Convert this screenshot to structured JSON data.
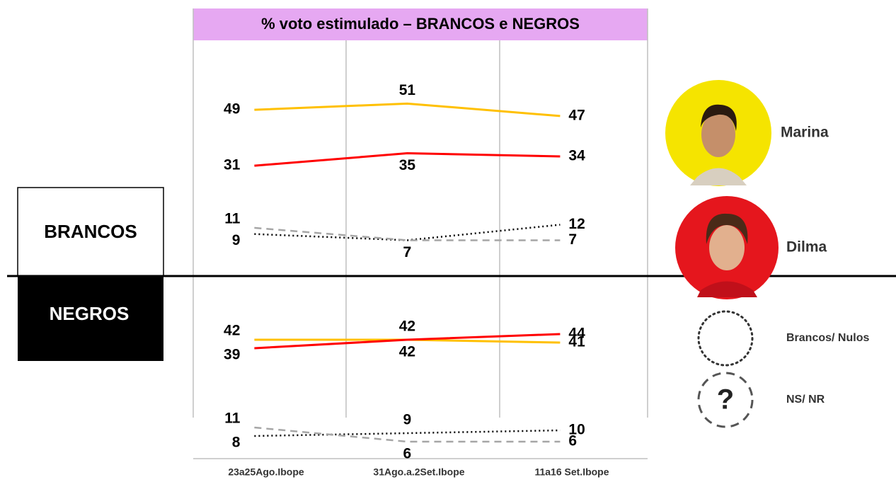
{
  "chart_data": {
    "type": "line",
    "title": "% voto estimulado – BRANCOS e NEGROS",
    "categories": [
      "23a25Ago.Ibope",
      "31Ago.a.2Set.Ibope",
      "11a16 Set.Ibope"
    ],
    "panels": [
      "BRANCOS",
      "NEGROS"
    ],
    "ylim": [
      [
        3,
        57
      ],
      [
        2,
        62
      ]
    ],
    "series": [
      {
        "name": "Marina",
        "color": "#ffc000",
        "dash": "solid",
        "values": [
          [
            49,
            51,
            47
          ],
          [
            42,
            42,
            41
          ]
        ]
      },
      {
        "name": "Dilma",
        "color": "#ff0000",
        "dash": "solid",
        "values": [
          [
            31,
            35,
            34
          ],
          [
            39,
            42,
            44
          ]
        ]
      },
      {
        "name": "Brancos/ Nulos",
        "color": "#000000",
        "dash": "dotted",
        "values": [
          [
            9,
            7,
            12
          ],
          [
            8,
            9,
            10
          ]
        ]
      },
      {
        "name": "NS/ NR",
        "color": "#a6a6a6",
        "dash": "dashed",
        "values": [
          [
            11,
            7,
            7
          ],
          [
            11,
            6,
            6
          ]
        ]
      }
    ]
  }
}
